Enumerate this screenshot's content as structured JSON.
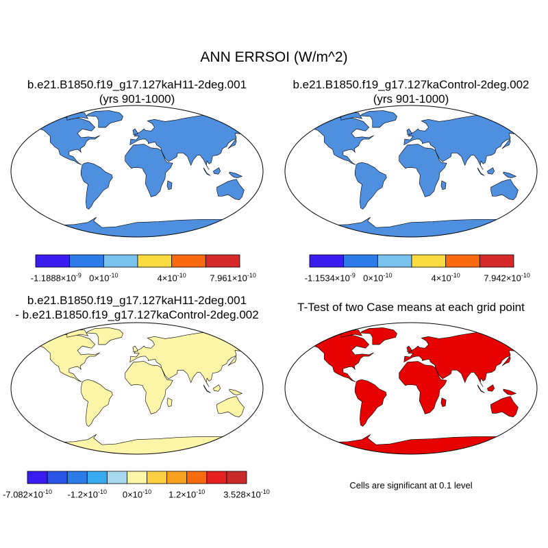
{
  "title": "ANN ERRSOI (W/m^2)",
  "panels": [
    {
      "title_line1": "b.e21.B1850.f19_g17.127kaH11-2deg.001",
      "title_line2": "(yrs 901-1000)",
      "colorbar": {
        "colors": [
          "#3b1cf0",
          "#2b7be8",
          "#7ac2ee",
          "#fbdc40",
          "#f96a10",
          "#d62a2a"
        ],
        "labels": [
          {
            "mant": "-1.1888",
            "exp": "-9"
          },
          {
            "mant": "0",
            "exp": "-10"
          },
          {
            "mant": "4",
            "exp": "-10"
          },
          {
            "mant": "7.961",
            "exp": "-10"
          }
        ]
      }
    },
    {
      "title_line1": "b.e21.B1850.f19_g17.127kaControl-2deg.002",
      "title_line2": "(yrs 901-1000)",
      "colorbar": {
        "colors": [
          "#3b1cf0",
          "#2b7be8",
          "#7ac2ee",
          "#fbdc40",
          "#f96a10",
          "#d62a2a"
        ],
        "labels": [
          {
            "mant": "-1.1534",
            "exp": "-9"
          },
          {
            "mant": "0",
            "exp": "-10"
          },
          {
            "mant": "4",
            "exp": "-10"
          },
          {
            "mant": "7.942",
            "exp": "-10"
          }
        ]
      }
    },
    {
      "title_line1": "b.e21.B1850.f19_g17.127kaH11-2deg.001",
      "title_line2": "- b.e21.B1850.f19_g17.127kaControl-2deg.002",
      "colorbar": {
        "colors": [
          "#3a1cf0",
          "#2b55e8",
          "#2b7be8",
          "#38aaf0",
          "#a8d8f0",
          "#fdf5a8",
          "#fbd040",
          "#f8a020",
          "#f86a10",
          "#e61f1f",
          "#c82a2a"
        ],
        "labels": [
          {
            "mant": "-7.082",
            "exp": "-10"
          },
          {
            "mant": "-1.2",
            "exp": "-10"
          },
          {
            "mant": "0",
            "exp": "-10"
          },
          {
            "mant": "1.2",
            "exp": "-10"
          },
          {
            "mant": "3.528",
            "exp": "-10"
          }
        ]
      }
    },
    {
      "title_line1": "T-Test of two Case means at each grid point",
      "title_line2": "",
      "note": "Cells are significant at 0.1 level"
    }
  ],
  "colors": {
    "ocean": "#ffffff",
    "land_p1": "#4f8fe0",
    "land_p3": "#fdf5a8",
    "significant": "#e60000",
    "antarctica": "#d62a2a",
    "coast": "#000000"
  },
  "times_sign": "×10"
}
